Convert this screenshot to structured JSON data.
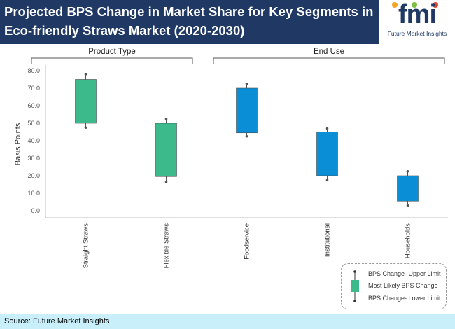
{
  "header": {
    "title_line1": "Projected BPS Change in Market Share for Key Segments in",
    "title_line2": "Eco-friendly Straws Market (2020-2030)",
    "logo_text": "fmi",
    "logo_subtitle": "Future Market Insights"
  },
  "footer": {
    "source": "Source: Future Market Insights"
  },
  "legend": {
    "upper": "BPS Change- Upper Limit",
    "likely": "Most Likely BPS Change",
    "lower": "BPS Change- Lower Limit"
  },
  "colors": {
    "header_bg": "#1f3864",
    "product_box": "#3dba8c",
    "enduse_box": "#0a8fd6",
    "footer_bg": "#c9f0fa"
  },
  "chart_data": {
    "type": "box",
    "ylabel": "Basis Points",
    "ylim": [
      0,
      80
    ],
    "yticks": [
      "80.0",
      "70.0",
      "60.0",
      "50.0",
      "40.0",
      "30.0",
      "20.0",
      "10.0",
      "0.0"
    ],
    "groups": [
      {
        "label": "Product Type",
        "categories": [
          "Straight Straws",
          "Flexible Straws"
        ]
      },
      {
        "label": "End Use",
        "categories": [
          "Foodservice",
          "Institutional",
          "Households"
        ]
      }
    ],
    "series": [
      {
        "name": "Straight Straws",
        "group": 0,
        "lower": 47.5,
        "box_low": 50,
        "box_high": 75,
        "upper": 78
      },
      {
        "name": "Flexible Straws",
        "group": 0,
        "lower": 16.5,
        "box_low": 19.5,
        "box_high": 50,
        "upper": 52.5
      },
      {
        "name": "Foodservice",
        "group": 1,
        "lower": 42.5,
        "box_low": 44.5,
        "box_high": 70,
        "upper": 72.5
      },
      {
        "name": "Institutional",
        "group": 1,
        "lower": 17.5,
        "box_low": 20,
        "box_high": 45,
        "upper": 47
      },
      {
        "name": "Households",
        "group": 1,
        "lower": 3,
        "box_low": 5.5,
        "box_high": 20,
        "upper": 22.5
      }
    ]
  }
}
